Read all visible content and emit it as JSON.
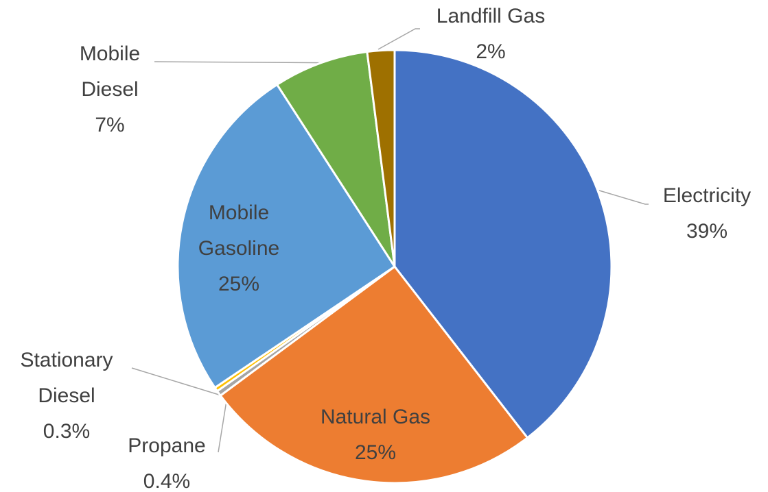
{
  "chart_data": {
    "type": "pie",
    "categories": [
      "Electricity",
      "Natural Gas",
      "Propane",
      "Stationary Diesel",
      "Mobile Gasoline",
      "Mobile Diesel",
      "Landfill Gas"
    ],
    "values": [
      39,
      25,
      0.4,
      0.3,
      25,
      7,
      2
    ],
    "value_labels": [
      "39%",
      "25%",
      "0.4%",
      "0.3%",
      "25%",
      "7%",
      "2%"
    ],
    "colors": [
      "#4472c4",
      "#ed7d31",
      "#a5a5a5",
      "#ffc000",
      "#5b9bd5",
      "#70ad47",
      "#9e7000"
    ]
  }
}
